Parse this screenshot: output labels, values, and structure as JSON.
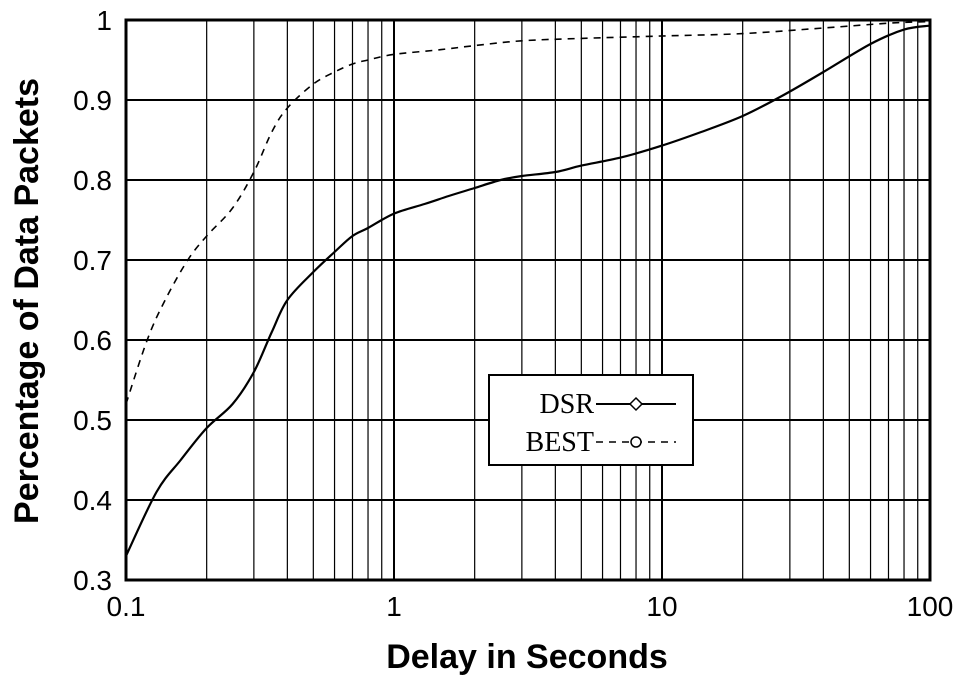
{
  "chart_data": {
    "type": "line",
    "xlabel": "Delay in Seconds",
    "ylabel": "Percentage of Data Packets",
    "x_scale": "log",
    "xlim": [
      0.1,
      100
    ],
    "ylim": [
      0.3,
      1.0
    ],
    "x_ticks": [
      0.1,
      1,
      10,
      100
    ],
    "x_tick_labels": [
      "0.1",
      "1",
      "10",
      "100"
    ],
    "y_ticks": [
      0.3,
      0.4,
      0.5,
      0.6,
      0.7,
      0.8,
      0.9,
      1.0
    ],
    "y_tick_labels": [
      "0.3",
      "0.4",
      "0.5",
      "0.6",
      "0.7",
      "0.8",
      "0.9",
      "1"
    ],
    "grid": true,
    "legend_position": "center-right",
    "series": [
      {
        "name": "DSR",
        "style": "solid",
        "marker": "diamond",
        "x": [
          0.1,
          0.13,
          0.16,
          0.2,
          0.25,
          0.3,
          0.35,
          0.4,
          0.5,
          0.6,
          0.7,
          0.8,
          1.0,
          1.3,
          1.6,
          2.0,
          2.5,
          3.0,
          4.0,
          5.0,
          7.0,
          10.0,
          14.0,
          20.0,
          28.0,
          40.0,
          60.0,
          80.0,
          100.0
        ],
        "y": [
          0.33,
          0.41,
          0.45,
          0.49,
          0.52,
          0.56,
          0.61,
          0.65,
          0.685,
          0.71,
          0.73,
          0.74,
          0.758,
          0.77,
          0.78,
          0.79,
          0.8,
          0.805,
          0.81,
          0.818,
          0.828,
          0.843,
          0.86,
          0.88,
          0.905,
          0.935,
          0.97,
          0.988,
          0.993
        ]
      },
      {
        "name": "BEST",
        "style": "dashed",
        "marker": "circle",
        "x": [
          0.1,
          0.12,
          0.14,
          0.17,
          0.2,
          0.25,
          0.3,
          0.35,
          0.4,
          0.5,
          0.6,
          0.7,
          0.8,
          1.0,
          1.5,
          2.0,
          3.0,
          5.0,
          10.0,
          20.0,
          40.0,
          70.0,
          100.0
        ],
        "y": [
          0.52,
          0.6,
          0.65,
          0.7,
          0.73,
          0.765,
          0.81,
          0.86,
          0.89,
          0.92,
          0.935,
          0.945,
          0.95,
          0.957,
          0.963,
          0.968,
          0.974,
          0.977,
          0.98,
          0.983,
          0.99,
          0.996,
          0.998
        ]
      }
    ]
  }
}
